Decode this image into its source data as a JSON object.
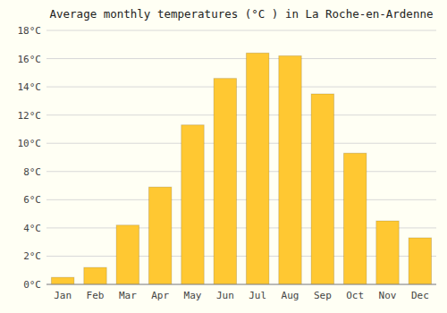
{
  "chart_data": {
    "type": "bar",
    "title": "Average monthly temperatures (°C ) in La Roche-en-Ardenne",
    "categories": [
      "Jan",
      "Feb",
      "Mar",
      "Apr",
      "May",
      "Jun",
      "Jul",
      "Aug",
      "Sep",
      "Oct",
      "Nov",
      "Dec"
    ],
    "values": [
      0.5,
      1.2,
      4.2,
      6.9,
      11.3,
      14.6,
      16.4,
      16.2,
      13.5,
      9.3,
      4.5,
      3.3
    ],
    "color": "#FFC832",
    "ylim": [
      0,
      18
    ],
    "yticks": [
      {
        "value": 0,
        "label": "0°C"
      },
      {
        "value": 2,
        "label": "2°C"
      },
      {
        "value": 4,
        "label": "4°C"
      },
      {
        "value": 6,
        "label": "6°C"
      },
      {
        "value": 8,
        "label": "8°C"
      },
      {
        "value": 10,
        "label": "10°C"
      },
      {
        "value": 12,
        "label": "12°C"
      },
      {
        "value": 14,
        "label": "14°C"
      },
      {
        "value": 16,
        "label": "16°C"
      },
      {
        "value": 18,
        "label": "18°C"
      }
    ],
    "grid": true
  }
}
